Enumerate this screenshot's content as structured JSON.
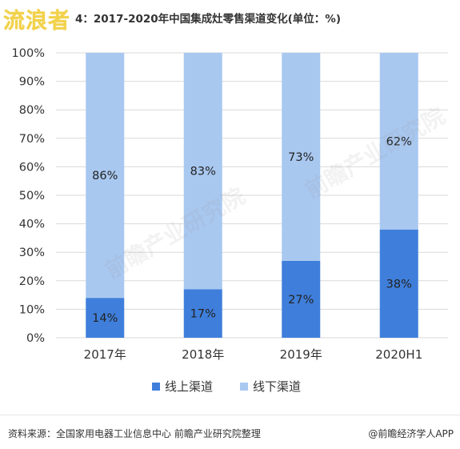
{
  "header": {
    "logo_text": "流浪者",
    "title": "4：2017-2020年中国集成灶零售渠道变化(单位：%)"
  },
  "watermark": {
    "text": "前瞻产业研究院"
  },
  "chart_data": {
    "type": "bar",
    "stacked": true,
    "categories": [
      "2017年",
      "2018年",
      "2019年",
      "2020H1"
    ],
    "series": [
      {
        "name": "线上渠道",
        "values": [
          14,
          17,
          27,
          38
        ],
        "color": "#3f7fdb"
      },
      {
        "name": "线下渠道",
        "values": [
          86,
          83,
          73,
          62
        ],
        "color": "#a9c8f0"
      }
    ],
    "data_labels": {
      "线上渠道": [
        "14%",
        "17%",
        "27%",
        "38%"
      ],
      "线下渠道": [
        "86%",
        "83%",
        "73%",
        "62%"
      ]
    },
    "ylim": [
      0,
      100
    ],
    "yticks": [
      "0%",
      "10%",
      "20%",
      "30%",
      "40%",
      "50%",
      "60%",
      "70%",
      "80%",
      "90%",
      "100%"
    ],
    "grid": true,
    "legend": "bottom",
    "title": "",
    "xlabel": "",
    "ylabel": ""
  },
  "footer": {
    "source": "资料来源：全国家用电器工业信息中心 前瞻产业研究院整理",
    "brand": "@前瞻经济学人APP"
  }
}
